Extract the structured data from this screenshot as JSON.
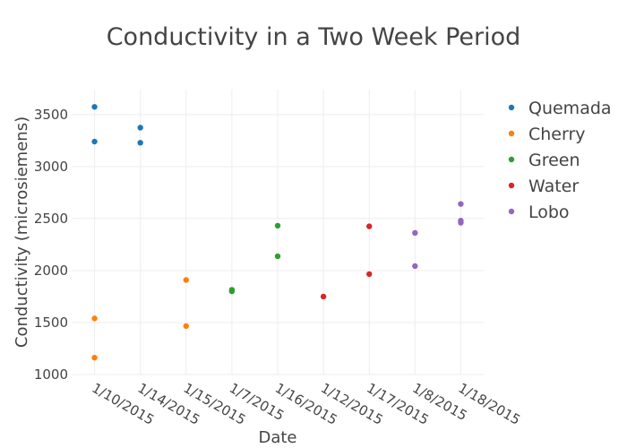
{
  "chart_data": {
    "type": "scatter",
    "title": "Conductivity in a Two Week Period",
    "xlabel": "Date",
    "ylabel": "Conductivity (microsiemens)",
    "x_categories": [
      "1/10/2015",
      "1/14/2015",
      "1/15/2015",
      "1/7/2015",
      "1/16/2015",
      "1/12/2015",
      "1/17/2015",
      "1/8/2015",
      "1/18/2015"
    ],
    "yticks": [
      1000,
      1500,
      2000,
      2500,
      3000,
      3500
    ],
    "ylim": [
      1000,
      3740
    ],
    "grid": true,
    "legend_position": "top-right",
    "series": [
      {
        "name": "Quemada",
        "color": "#1f77b4",
        "points": [
          [
            "1/10/2015",
            3574
          ],
          [
            "1/10/2015",
            3240
          ],
          [
            "1/14/2015",
            3374
          ],
          [
            "1/14/2015",
            3229
          ]
        ]
      },
      {
        "name": "Cherry",
        "color": "#ff7f0e",
        "points": [
          [
            "1/10/2015",
            1540
          ],
          [
            "1/10/2015",
            1162
          ],
          [
            "1/15/2015",
            1909
          ],
          [
            "1/15/2015",
            1466
          ]
        ]
      },
      {
        "name": "Green",
        "color": "#2ca02c",
        "points": [
          [
            "1/7/2015",
            1815
          ],
          [
            "1/7/2015",
            1800
          ],
          [
            "1/16/2015",
            2431
          ],
          [
            "1/16/2015",
            2137
          ]
        ]
      },
      {
        "name": "Water",
        "color": "#d62728",
        "points": [
          [
            "1/12/2015",
            1750
          ],
          [
            "1/17/2015",
            2425
          ],
          [
            "1/17/2015",
            1966
          ]
        ]
      },
      {
        "name": "Lobo",
        "color": "#9467bd",
        "points": [
          [
            "1/8/2015",
            2362
          ],
          [
            "1/8/2015",
            2043
          ],
          [
            "1/18/2015",
            2640
          ],
          [
            "1/18/2015",
            2480
          ],
          [
            "1/18/2015",
            2460
          ]
        ]
      }
    ]
  }
}
